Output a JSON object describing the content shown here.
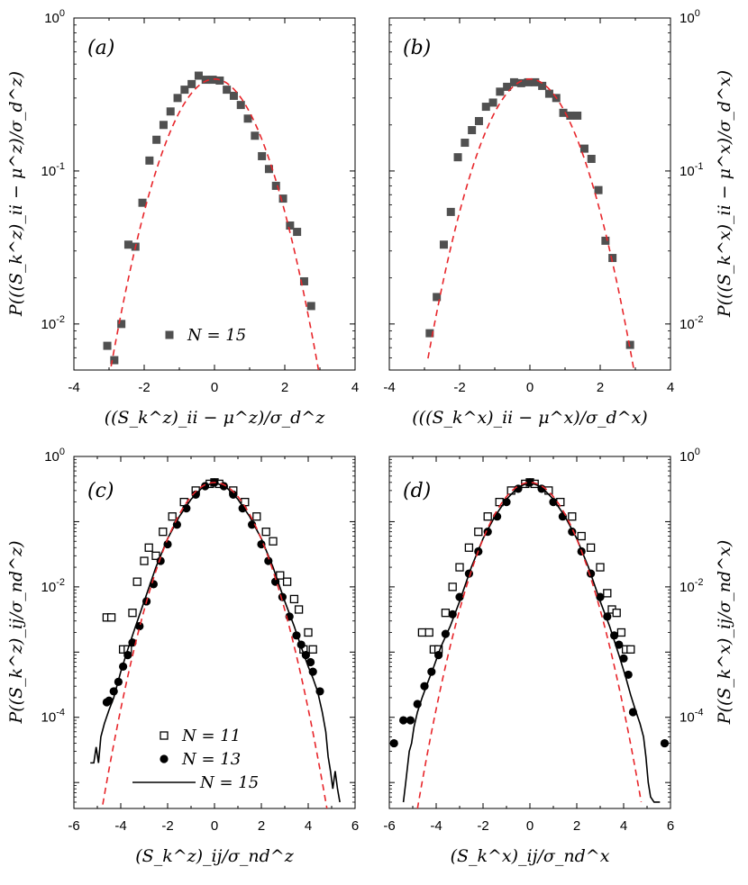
{
  "chart_data": [
    {
      "panel": "(a)",
      "type": "scatter",
      "yscale": "log",
      "xlim": [
        -4,
        4
      ],
      "ylim": [
        0.005,
        1
      ],
      "xticks": [
        "-4",
        "-2",
        "0",
        "2",
        "4"
      ],
      "yticks": [
        {
          "value": 1,
          "base": "10",
          "exp": "0"
        },
        {
          "value": 0.1,
          "base": "10",
          "exp": "-1"
        },
        {
          "value": 0.01,
          "base": "10",
          "exp": "-2"
        }
      ],
      "xlabel": "((S_k^z)_ii − μ^z)/σ_d^z",
      "ylabel": "P(((S_k^z)_ii − μ^z)/σ_d^z)",
      "ylabel_side": "left",
      "legend": [
        {
          "marker": "square-filled",
          "label": "N = 15"
        }
      ],
      "series": [
        {
          "name": "N = 15",
          "marker": "square-filled",
          "color": "#505050",
          "x": [
            -3.05,
            -2.85,
            -2.65,
            -2.45,
            -2.25,
            -2.05,
            -1.85,
            -1.65,
            -1.45,
            -1.25,
            -1.05,
            -0.85,
            -0.65,
            -0.45,
            -0.25,
            -0.05,
            0.15,
            0.35,
            0.55,
            0.75,
            0.95,
            1.15,
            1.35,
            1.55,
            1.75,
            1.95,
            2.15,
            2.35,
            2.55,
            2.75
          ],
          "y": [
            0.0072,
            0.0058,
            0.01,
            0.033,
            0.032,
            0.062,
            0.117,
            0.16,
            0.2,
            0.245,
            0.3,
            0.34,
            0.37,
            0.42,
            0.395,
            0.395,
            0.39,
            0.34,
            0.31,
            0.27,
            0.22,
            0.17,
            0.125,
            0.103,
            0.08,
            0.066,
            0.044,
            0.04,
            0.019,
            0.0131
          ]
        },
        {
          "name": "Gaussian fit",
          "line": "dashed",
          "color": "#e8262b",
          "fn": "gauss",
          "sigma": 1.0,
          "xrange": [
            -3.1,
            3.1
          ]
        }
      ]
    },
    {
      "panel": "(b)",
      "type": "scatter",
      "yscale": "log",
      "xlim": [
        -4,
        4
      ],
      "ylim": [
        0.005,
        1
      ],
      "xticks": [
        "-4",
        "-2",
        "0",
        "2",
        "4"
      ],
      "yticks": [
        {
          "value": 1,
          "base": "10",
          "exp": "0"
        },
        {
          "value": 0.1,
          "base": "10",
          "exp": "-1"
        },
        {
          "value": 0.01,
          "base": "10",
          "exp": "-2"
        }
      ],
      "xlabel": "(((S_k^x)_ii − μ^x)/σ_d^x)",
      "ylabel": "P(((S_k^x)_ii − μ^x)/σ_d^x)",
      "ylabel_side": "right",
      "legend": [],
      "series": [
        {
          "name": "N = 15",
          "marker": "square-filled",
          "color": "#505050",
          "x": [
            -2.85,
            -2.65,
            -2.45,
            -2.25,
            -2.05,
            -1.85,
            -1.65,
            -1.45,
            -1.25,
            -1.05,
            -0.85,
            -0.65,
            -0.45,
            -0.25,
            -0.05,
            0.15,
            0.35,
            0.55,
            0.75,
            0.95,
            1.15,
            1.35,
            1.55,
            1.75,
            1.95,
            2.15,
            2.35,
            2.85
          ],
          "y": [
            0.0087,
            0.015,
            0.033,
            0.054,
            0.123,
            0.153,
            0.185,
            0.212,
            0.263,
            0.28,
            0.33,
            0.355,
            0.38,
            0.375,
            0.38,
            0.38,
            0.36,
            0.32,
            0.3,
            0.24,
            0.23,
            0.23,
            0.14,
            0.12,
            0.075,
            0.035,
            0.027,
            0.0073
          ]
        },
        {
          "name": "Gaussian fit",
          "line": "dashed",
          "color": "#e8262b",
          "fn": "gauss",
          "sigma": 1.0,
          "xrange": [
            -2.9,
            2.95
          ]
        }
      ]
    },
    {
      "panel": "(c)",
      "type": "scatter",
      "yscale": "log",
      "xlim": [
        -6,
        6
      ],
      "ylim": [
        4e-06,
        1
      ],
      "xticks": [
        "-6",
        "-4",
        "-2",
        "0",
        "2",
        "4",
        "6"
      ],
      "yticks": [
        {
          "value": 1,
          "base": "10",
          "exp": "0"
        },
        {
          "value": 0.01,
          "base": "10",
          "exp": "-2"
        },
        {
          "value": 0.0001,
          "base": "10",
          "exp": "-4"
        }
      ],
      "xlabel": "(S_k^z)_ij/σ_nd^z",
      "ylabel": "P((S_k^z)_ij/σ_nd^z)",
      "ylabel_side": "left",
      "legend": [
        {
          "marker": "square-open",
          "label": "N = 11"
        },
        {
          "marker": "circle-filled",
          "label": "N = 13"
        },
        {
          "marker": "line",
          "label": "N = 15"
        }
      ],
      "series": [
        {
          "name": "N = 11",
          "marker": "square-open",
          "color": "#000000",
          "x": [
            -4.6,
            -4.4,
            -3.9,
            -3.7,
            -3.5,
            -3.3,
            -3.0,
            -2.8,
            -2.5,
            -2.2,
            -1.8,
            -1.3,
            -0.8,
            -0.2,
            0.0,
            0.2,
            0.8,
            1.3,
            1.8,
            2.2,
            2.5,
            2.8,
            3.1,
            3.4,
            3.6,
            3.8,
            4.0,
            4.2
          ],
          "y": [
            0.0034,
            0.0034,
            0.0011,
            0.0011,
            0.004,
            0.012,
            0.025,
            0.04,
            0.03,
            0.07,
            0.12,
            0.2,
            0.3,
            0.38,
            0.4,
            0.38,
            0.3,
            0.2,
            0.12,
            0.07,
            0.05,
            0.015,
            0.012,
            0.0065,
            0.0045,
            0.0011,
            0.002,
            0.0011
          ]
        },
        {
          "name": "N = 13",
          "marker": "circle-filled",
          "color": "#000000",
          "x": [
            -4.6,
            -4.5,
            -4.3,
            -4.1,
            -3.9,
            -3.7,
            -3.5,
            -3.2,
            -2.9,
            -2.6,
            -2.3,
            -2.0,
            -1.6,
            -1.2,
            -0.8,
            -0.4,
            0.0,
            0.4,
            0.8,
            1.2,
            1.6,
            2.0,
            2.3,
            2.6,
            2.9,
            3.2,
            3.5,
            3.7,
            3.9,
            4.1,
            4.2,
            4.5
          ],
          "y": [
            0.00017,
            0.00018,
            0.00025,
            0.00035,
            0.0006,
            0.0009,
            0.0014,
            0.0025,
            0.006,
            0.011,
            0.025,
            0.045,
            0.09,
            0.16,
            0.26,
            0.35,
            0.4,
            0.35,
            0.26,
            0.16,
            0.09,
            0.045,
            0.025,
            0.012,
            0.007,
            0.0035,
            0.0018,
            0.0013,
            0.0009,
            0.0007,
            0.0005,
            0.00025
          ]
        },
        {
          "name": "N = 15",
          "line": "solid",
          "color": "#000000",
          "x": [
            -5.3,
            -5.15,
            -5.05,
            -4.95,
            -4.85,
            -4.7,
            -4.5,
            -4.3,
            -4.0,
            -3.7,
            -3.4,
            -3.0,
            -2.5,
            -2.0,
            -1.5,
            -1.0,
            -0.5,
            0.0,
            0.5,
            1.0,
            1.5,
            2.0,
            2.5,
            3.0,
            3.4,
            3.7,
            4.0,
            4.2,
            4.4,
            4.6,
            4.75,
            4.85,
            4.95,
            5.05,
            5.15,
            5.25,
            5.35
          ],
          "y": [
            2e-05,
            2e-05,
            3.5e-05,
            2e-05,
            5e-05,
            8e-05,
            0.00013,
            0.0002,
            0.0005,
            0.0011,
            0.0023,
            0.006,
            0.02,
            0.055,
            0.12,
            0.22,
            0.34,
            0.4,
            0.34,
            0.22,
            0.12,
            0.055,
            0.02,
            0.006,
            0.0025,
            0.0012,
            0.0006,
            0.0004,
            0.00025,
            0.00012,
            6e-05,
            2.5e-05,
            1.5e-05,
            8e-06,
            1.5e-05,
            8e-06,
            5e-06
          ]
        },
        {
          "name": "Gaussian fit",
          "line": "dashed",
          "color": "#e8262b",
          "fn": "gauss",
          "sigma": 1.0,
          "xrange": [
            -5.0,
            4.85
          ]
        }
      ]
    },
    {
      "panel": "(d)",
      "type": "scatter",
      "yscale": "log",
      "xlim": [
        -6,
        6
      ],
      "ylim": [
        4e-06,
        1
      ],
      "xticks": [
        "-6",
        "-4",
        "-2",
        "0",
        "2",
        "4",
        "6"
      ],
      "yticks": [
        {
          "value": 1,
          "base": "10",
          "exp": "0"
        },
        {
          "value": 0.01,
          "base": "10",
          "exp": "-2"
        },
        {
          "value": 0.0001,
          "base": "10",
          "exp": "-4"
        }
      ],
      "xlabel": "(S_k^x)_ij/σ_nd^x",
      "ylabel": "P((S_k^x)_ij/σ_nd^x)",
      "ylabel_side": "right",
      "legend": [],
      "series": [
        {
          "name": "N = 11",
          "marker": "square-open",
          "color": "#000000",
          "x": [
            -4.6,
            -4.3,
            -4.1,
            -3.9,
            -3.6,
            -3.3,
            -3.0,
            -2.6,
            -2.2,
            -1.8,
            -1.3,
            -0.8,
            -0.2,
            0.0,
            0.2,
            0.8,
            1.3,
            1.8,
            2.2,
            2.6,
            3.0,
            3.3,
            3.5,
            3.7,
            3.9,
            4.1,
            4.3
          ],
          "y": [
            0.002,
            0.002,
            0.0011,
            0.0011,
            0.004,
            0.01,
            0.02,
            0.04,
            0.07,
            0.12,
            0.2,
            0.3,
            0.38,
            0.4,
            0.38,
            0.3,
            0.2,
            0.12,
            0.06,
            0.04,
            0.02,
            0.008,
            0.0045,
            0.004,
            0.002,
            0.0011,
            0.0011
          ]
        },
        {
          "name": "N = 13",
          "marker": "circle-filled",
          "color": "#000000",
          "x": [
            -5.8,
            -5.4,
            -5.1,
            -4.8,
            -4.5,
            -4.2,
            -3.9,
            -3.6,
            -3.3,
            -3.0,
            -2.6,
            -2.2,
            -1.8,
            -1.4,
            -1.0,
            -0.5,
            0.0,
            0.5,
            1.0,
            1.4,
            1.8,
            2.2,
            2.6,
            3.0,
            3.3,
            3.6,
            3.8,
            4.0,
            4.2,
            4.4,
            5.75
          ],
          "y": [
            4e-05,
            9e-05,
            9e-05,
            0.00016,
            0.0003,
            0.0005,
            0.0009,
            0.0019,
            0.0038,
            0.007,
            0.016,
            0.035,
            0.07,
            0.12,
            0.2,
            0.32,
            0.4,
            0.32,
            0.2,
            0.12,
            0.07,
            0.035,
            0.016,
            0.007,
            0.0035,
            0.0018,
            0.0013,
            0.0008,
            0.00045,
            0.00012,
            4e-05
          ]
        },
        {
          "name": "N = 15",
          "line": "solid",
          "color": "#000000",
          "x": [
            -5.4,
            -5.3,
            -5.15,
            -5.05,
            -4.95,
            -4.8,
            -4.6,
            -4.35,
            -4.1,
            -3.8,
            -3.4,
            -3.0,
            -2.5,
            -2.0,
            -1.5,
            -1.0,
            -0.5,
            0.0,
            0.5,
            1.0,
            1.5,
            2.0,
            2.5,
            3.0,
            3.4,
            3.8,
            4.1,
            4.3,
            4.5,
            4.7,
            4.85,
            4.95,
            5.05,
            5.15,
            5.3,
            5.45,
            5.55
          ],
          "y": [
            5e-06,
            1e-05,
            3e-05,
            4e-05,
            7e-05,
            0.00012,
            0.0002,
            0.00035,
            0.0006,
            0.0012,
            0.0025,
            0.006,
            0.02,
            0.055,
            0.12,
            0.22,
            0.34,
            0.4,
            0.34,
            0.22,
            0.12,
            0.055,
            0.02,
            0.006,
            0.0025,
            0.0009,
            0.0004,
            0.00022,
            0.00013,
            8e-05,
            5e-05,
            2.5e-05,
            1e-05,
            6e-06,
            5e-06,
            5e-06,
            5e-06
          ]
        },
        {
          "name": "Gaussian fit",
          "line": "dashed",
          "color": "#e8262b",
          "fn": "gauss",
          "sigma": 1.0,
          "xrange": [
            -4.8,
            4.75
          ]
        }
      ]
    }
  ]
}
